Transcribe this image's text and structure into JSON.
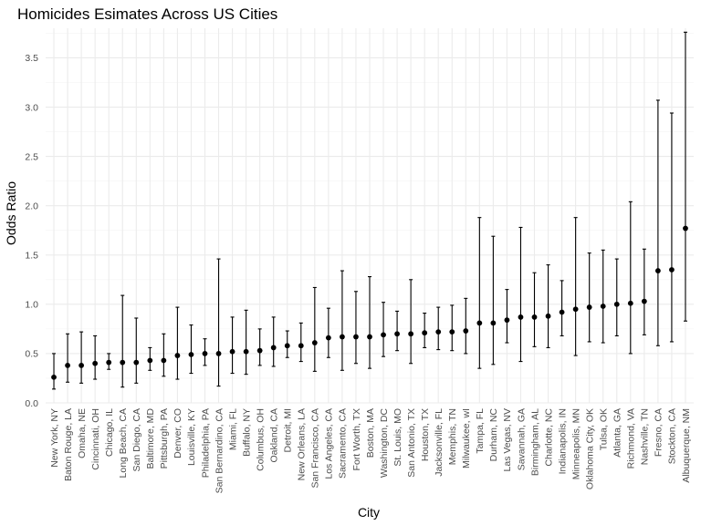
{
  "chart_data": {
    "type": "scatter",
    "title": "Homicides Esimates Across US Cities",
    "xlabel": "City",
    "ylabel": "Odds Ratio",
    "ylim": [
      0,
      3.8
    ],
    "yticks": [
      0.0,
      0.5,
      1.0,
      1.5,
      2.0,
      2.5,
      3.0,
      3.5
    ],
    "ytick_labels": [
      "0.0",
      "0.5",
      "1.0",
      "1.5",
      "2.0",
      "2.5",
      "3.0",
      "3.5"
    ],
    "grid": true,
    "series": [
      {
        "marker": "point with error bar",
        "points": [
          {
            "city": "New York, NY",
            "estimate": 0.26,
            "low": 0.14,
            "high": 0.5
          },
          {
            "city": "Baton Rouge, LA",
            "estimate": 0.38,
            "low": 0.21,
            "high": 0.7
          },
          {
            "city": "Omaha, NE",
            "estimate": 0.38,
            "low": 0.2,
            "high": 0.72
          },
          {
            "city": "Cincinnati, OH",
            "estimate": 0.4,
            "low": 0.24,
            "high": 0.68
          },
          {
            "city": "Chicago, IL",
            "estimate": 0.41,
            "low": 0.34,
            "high": 0.5
          },
          {
            "city": "Long Beach, CA",
            "estimate": 0.41,
            "low": 0.16,
            "high": 1.09
          },
          {
            "city": "San Diego, CA",
            "estimate": 0.41,
            "low": 0.2,
            "high": 0.86
          },
          {
            "city": "Baltimore, MD",
            "estimate": 0.43,
            "low": 0.33,
            "high": 0.56
          },
          {
            "city": "Pittsburgh, PA",
            "estimate": 0.43,
            "low": 0.27,
            "high": 0.7
          },
          {
            "city": "Denver, CO",
            "estimate": 0.48,
            "low": 0.24,
            "high": 0.97
          },
          {
            "city": "Louisville, KY",
            "estimate": 0.49,
            "low": 0.3,
            "high": 0.79
          },
          {
            "city": "Philadelphia, PA",
            "estimate": 0.5,
            "low": 0.38,
            "high": 0.65
          },
          {
            "city": "San Bernardino, CA",
            "estimate": 0.5,
            "low": 0.17,
            "high": 1.46
          },
          {
            "city": "Miami, FL",
            "estimate": 0.52,
            "low": 0.3,
            "high": 0.87
          },
          {
            "city": "Buffalo, NY",
            "estimate": 0.52,
            "low": 0.29,
            "high": 0.94
          },
          {
            "city": "Columbus, OH",
            "estimate": 0.53,
            "low": 0.38,
            "high": 0.75
          },
          {
            "city": "Oakland, CA",
            "estimate": 0.56,
            "low": 0.37,
            "high": 0.87
          },
          {
            "city": "Detroit, MI",
            "estimate": 0.58,
            "low": 0.46,
            "high": 0.73
          },
          {
            "city": "New Orleans, LA",
            "estimate": 0.58,
            "low": 0.42,
            "high": 0.81
          },
          {
            "city": "San Francisco, CA",
            "estimate": 0.61,
            "low": 0.32,
            "high": 1.17
          },
          {
            "city": "Los Angeles, CA",
            "estimate": 0.66,
            "low": 0.46,
            "high": 0.96
          },
          {
            "city": "Sacramento, CA",
            "estimate": 0.67,
            "low": 0.33,
            "high": 1.34
          },
          {
            "city": "Fort Worth, TX",
            "estimate": 0.67,
            "low": 0.4,
            "high": 1.13
          },
          {
            "city": "Boston, MA",
            "estimate": 0.67,
            "low": 0.35,
            "high": 1.28
          },
          {
            "city": "Washington, DC",
            "estimate": 0.69,
            "low": 0.47,
            "high": 1.02
          },
          {
            "city": "St. Louis, MO",
            "estimate": 0.7,
            "low": 0.53,
            "high": 0.93
          },
          {
            "city": "San Antonio, TX",
            "estimate": 0.7,
            "low": 0.4,
            "high": 1.25
          },
          {
            "city": "Houston, TX",
            "estimate": 0.71,
            "low": 0.56,
            "high": 0.91
          },
          {
            "city": "Jacksonville, FL",
            "estimate": 0.72,
            "low": 0.54,
            "high": 0.97
          },
          {
            "city": "Memphis, TN",
            "estimate": 0.72,
            "low": 0.53,
            "high": 0.99
          },
          {
            "city": "Milwaukee, wI",
            "estimate": 0.73,
            "low": 0.5,
            "high": 1.06
          },
          {
            "city": "Tampa, FL",
            "estimate": 0.81,
            "low": 0.35,
            "high": 1.88
          },
          {
            "city": "Durham, NC",
            "estimate": 0.81,
            "low": 0.39,
            "high": 1.69
          },
          {
            "city": "Las Vegas, NV",
            "estimate": 0.84,
            "low": 0.61,
            "high": 1.15
          },
          {
            "city": "Savannah, GA",
            "estimate": 0.87,
            "low": 0.42,
            "high": 1.78
          },
          {
            "city": "Birmingham, AL",
            "estimate": 0.87,
            "low": 0.57,
            "high": 1.32
          },
          {
            "city": "Charlotte, NC",
            "estimate": 0.88,
            "low": 0.56,
            "high": 1.4
          },
          {
            "city": "Indianapolis, IN",
            "estimate": 0.92,
            "low": 0.68,
            "high": 1.24
          },
          {
            "city": "Minneapolis, MN",
            "estimate": 0.95,
            "low": 0.48,
            "high": 1.88
          },
          {
            "city": "Oklahoma City, OK",
            "estimate": 0.97,
            "low": 0.62,
            "high": 1.52
          },
          {
            "city": "Tulsa, OK",
            "estimate": 0.98,
            "low": 0.61,
            "high": 1.55
          },
          {
            "city": "Atlanta, GA",
            "estimate": 1.0,
            "low": 0.68,
            "high": 1.46
          },
          {
            "city": "Richmond, VA",
            "estimate": 1.01,
            "low": 0.5,
            "high": 2.04
          },
          {
            "city": "Nashville, TN",
            "estimate": 1.03,
            "low": 0.69,
            "high": 1.56
          },
          {
            "city": "Fresno, CA",
            "estimate": 1.34,
            "low": 0.58,
            "high": 3.07
          },
          {
            "city": "Stockton, CA",
            "estimate": 1.35,
            "low": 0.62,
            "high": 2.94
          },
          {
            "city": "Albuquerque, NM",
            "estimate": 1.77,
            "low": 0.83,
            "high": 3.76
          }
        ]
      }
    ]
  }
}
